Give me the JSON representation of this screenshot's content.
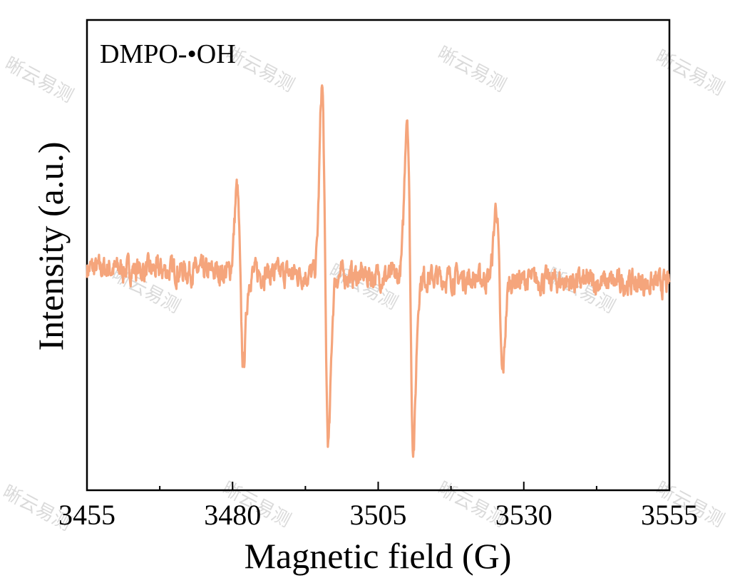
{
  "chart_data": {
    "type": "line",
    "title": "",
    "annotation": "DMPO-•OH",
    "xlabel": "Magnetic field (G)",
    "ylabel": "Intensity (a.u.)",
    "xlim": [
      3455,
      3555
    ],
    "ylim": [
      -1.0,
      1.0
    ],
    "xticks": [
      3455,
      3480,
      3505,
      3530,
      3555
    ],
    "xtick_labels": [
      "3455",
      "3480",
      "3505",
      "3530",
      "3555"
    ],
    "minor_xticks": [
      3467.5,
      3492.5,
      3517.5,
      3542.5
    ],
    "yticks_shown": false,
    "grid": false,
    "series": [
      {
        "name": "DMPO-•OH",
        "color": "#f5a57c",
        "baseline_start": 0.0,
        "baseline_end": -0.09,
        "peaks": [
          {
            "x": 3481.3,
            "max": 0.48,
            "min": -0.52
          },
          {
            "x": 3495.9,
            "max": 1.08,
            "min": -0.96
          },
          {
            "x": 3510.5,
            "max": 0.94,
            "min": -0.97
          },
          {
            "x": 3525.8,
            "max": 0.42,
            "min": -0.55
          }
        ]
      }
    ]
  },
  "watermark": {
    "text": "晰云易测"
  }
}
